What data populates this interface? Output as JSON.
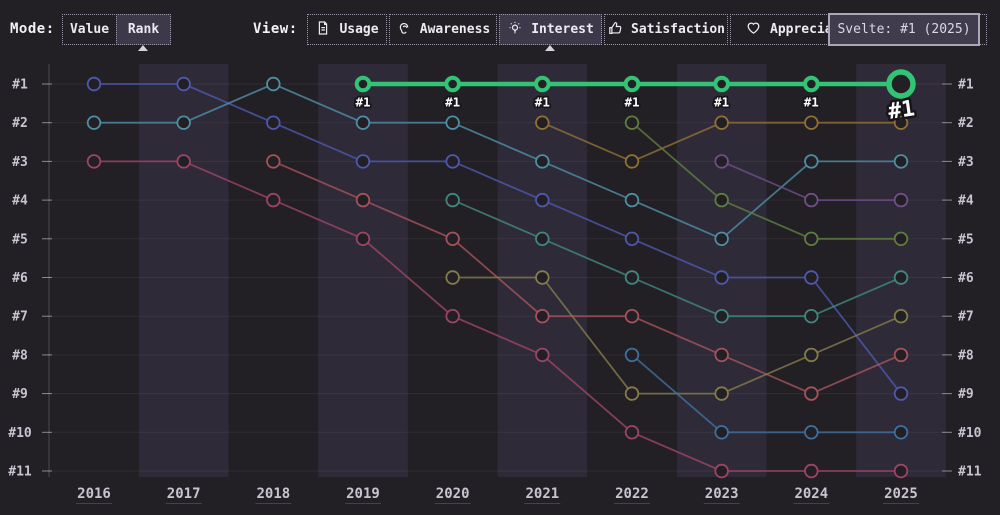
{
  "toolbar": {
    "mode": {
      "label": "Mode:",
      "options": [
        {
          "label": "Value",
          "selected": false
        },
        {
          "label": "Rank",
          "selected": true
        }
      ]
    },
    "view": {
      "label": "View:",
      "options": [
        {
          "label": "Usage",
          "icon": "document-icon",
          "selected": false
        },
        {
          "label": "Awareness",
          "icon": "ear-icon",
          "selected": false
        },
        {
          "label": "Interest",
          "icon": "lightbulb-icon",
          "selected": true
        },
        {
          "label": "Satisfaction",
          "icon": "thumbs-up-icon",
          "selected": false
        },
        {
          "label": "Appreciation",
          "icon": "heart-icon",
          "selected": false
        }
      ]
    }
  },
  "tooltip": {
    "text": "Svelte: #1 (2025)"
  },
  "chart_data": {
    "type": "line",
    "subtype": "bump-rank",
    "x": [
      2016,
      2017,
      2018,
      2019,
      2020,
      2021,
      2022,
      2023,
      2024,
      2025
    ],
    "x_labels": [
      "2016",
      "2017",
      "2018",
      "2019",
      "2020",
      "2021",
      "2022",
      "2023",
      "2024",
      "2025"
    ],
    "rank_labels": [
      "#1",
      "#2",
      "#3",
      "#4",
      "#5",
      "#6",
      "#7",
      "#8",
      "#9",
      "#10",
      "#11"
    ],
    "banded_years": [
      2017,
      2019,
      2021,
      2023,
      2025
    ],
    "grid": true,
    "legend": "none",
    "colors": {
      "background": "#221F25",
      "band": "#2E2A38",
      "grid": "rgba(255,255,255,0.06)",
      "tick": "#8B8893",
      "label": "#C9C5D0",
      "highlight": "#31C475"
    },
    "series": [
      {
        "id": "indigo-series",
        "color": "#4E59AE",
        "highlighted": false,
        "ranks_by_year": {
          "2016": 1,
          "2017": 1,
          "2018": 2,
          "2019": 3,
          "2020": 3,
          "2021": 4,
          "2022": 5,
          "2023": 6,
          "2024": 6,
          "2025": 9
        }
      },
      {
        "id": "teal-series",
        "color": "#4E8FA4",
        "highlighted": false,
        "ranks_by_year": {
          "2016": 2,
          "2017": 2,
          "2018": 1,
          "2019": 2,
          "2020": 2,
          "2021": 3,
          "2022": 4,
          "2023": 5,
          "2024": 3,
          "2025": 3
        }
      },
      {
        "id": "rose-series",
        "color": "#9D4566",
        "highlighted": false,
        "ranks_by_year": {
          "2016": 3,
          "2017": 3,
          "2018": 4,
          "2019": 5,
          "2020": 7,
          "2021": 8,
          "2022": 10,
          "2023": 11,
          "2024": 11,
          "2025": 11
        }
      },
      {
        "id": "brick-series",
        "color": "#A6525C",
        "highlighted": false,
        "ranks_by_year": {
          "2018": 3,
          "2019": 4,
          "2020": 5,
          "2021": 7,
          "2022": 7,
          "2023": 8,
          "2024": 9,
          "2025": 8
        }
      },
      {
        "id": "cyan-series",
        "color": "#41897F",
        "highlighted": false,
        "ranks_by_year": {
          "2020": 4,
          "2021": 5,
          "2022": 6,
          "2023": 7,
          "2024": 7,
          "2025": 6
        }
      },
      {
        "id": "olive-series",
        "color": "#857C4B",
        "highlighted": false,
        "ranks_by_year": {
          "2020": 6,
          "2021": 6,
          "2022": 9,
          "2023": 9,
          "2024": 8,
          "2025": 7
        }
      },
      {
        "id": "mustard-series",
        "color": "#927134",
        "highlighted": false,
        "ranks_by_year": {
          "2021": 2,
          "2022": 3,
          "2023": 2,
          "2024": 2,
          "2025": 2
        }
      },
      {
        "id": "forest-series",
        "color": "#5F7F3F",
        "highlighted": false,
        "ranks_by_year": {
          "2022": 2,
          "2023": 4,
          "2024": 5,
          "2025": 5
        }
      },
      {
        "id": "steel-series",
        "color": "#3E719F",
        "highlighted": false,
        "ranks_by_year": {
          "2022": 8,
          "2023": 10,
          "2024": 10,
          "2025": 10
        }
      },
      {
        "id": "purple-series",
        "color": "#714E87",
        "highlighted": false,
        "ranks_by_year": {
          "2023": 3,
          "2024": 4,
          "2025": 4
        }
      },
      {
        "id": "svelte-series",
        "name": "Svelte",
        "color": "#31C475",
        "highlighted": true,
        "point_label": "#1",
        "end_label": "#1",
        "ranks_by_year": {
          "2019": 1,
          "2020": 1,
          "2021": 1,
          "2022": 1,
          "2023": 1,
          "2024": 1,
          "2025": 1
        }
      }
    ]
  }
}
